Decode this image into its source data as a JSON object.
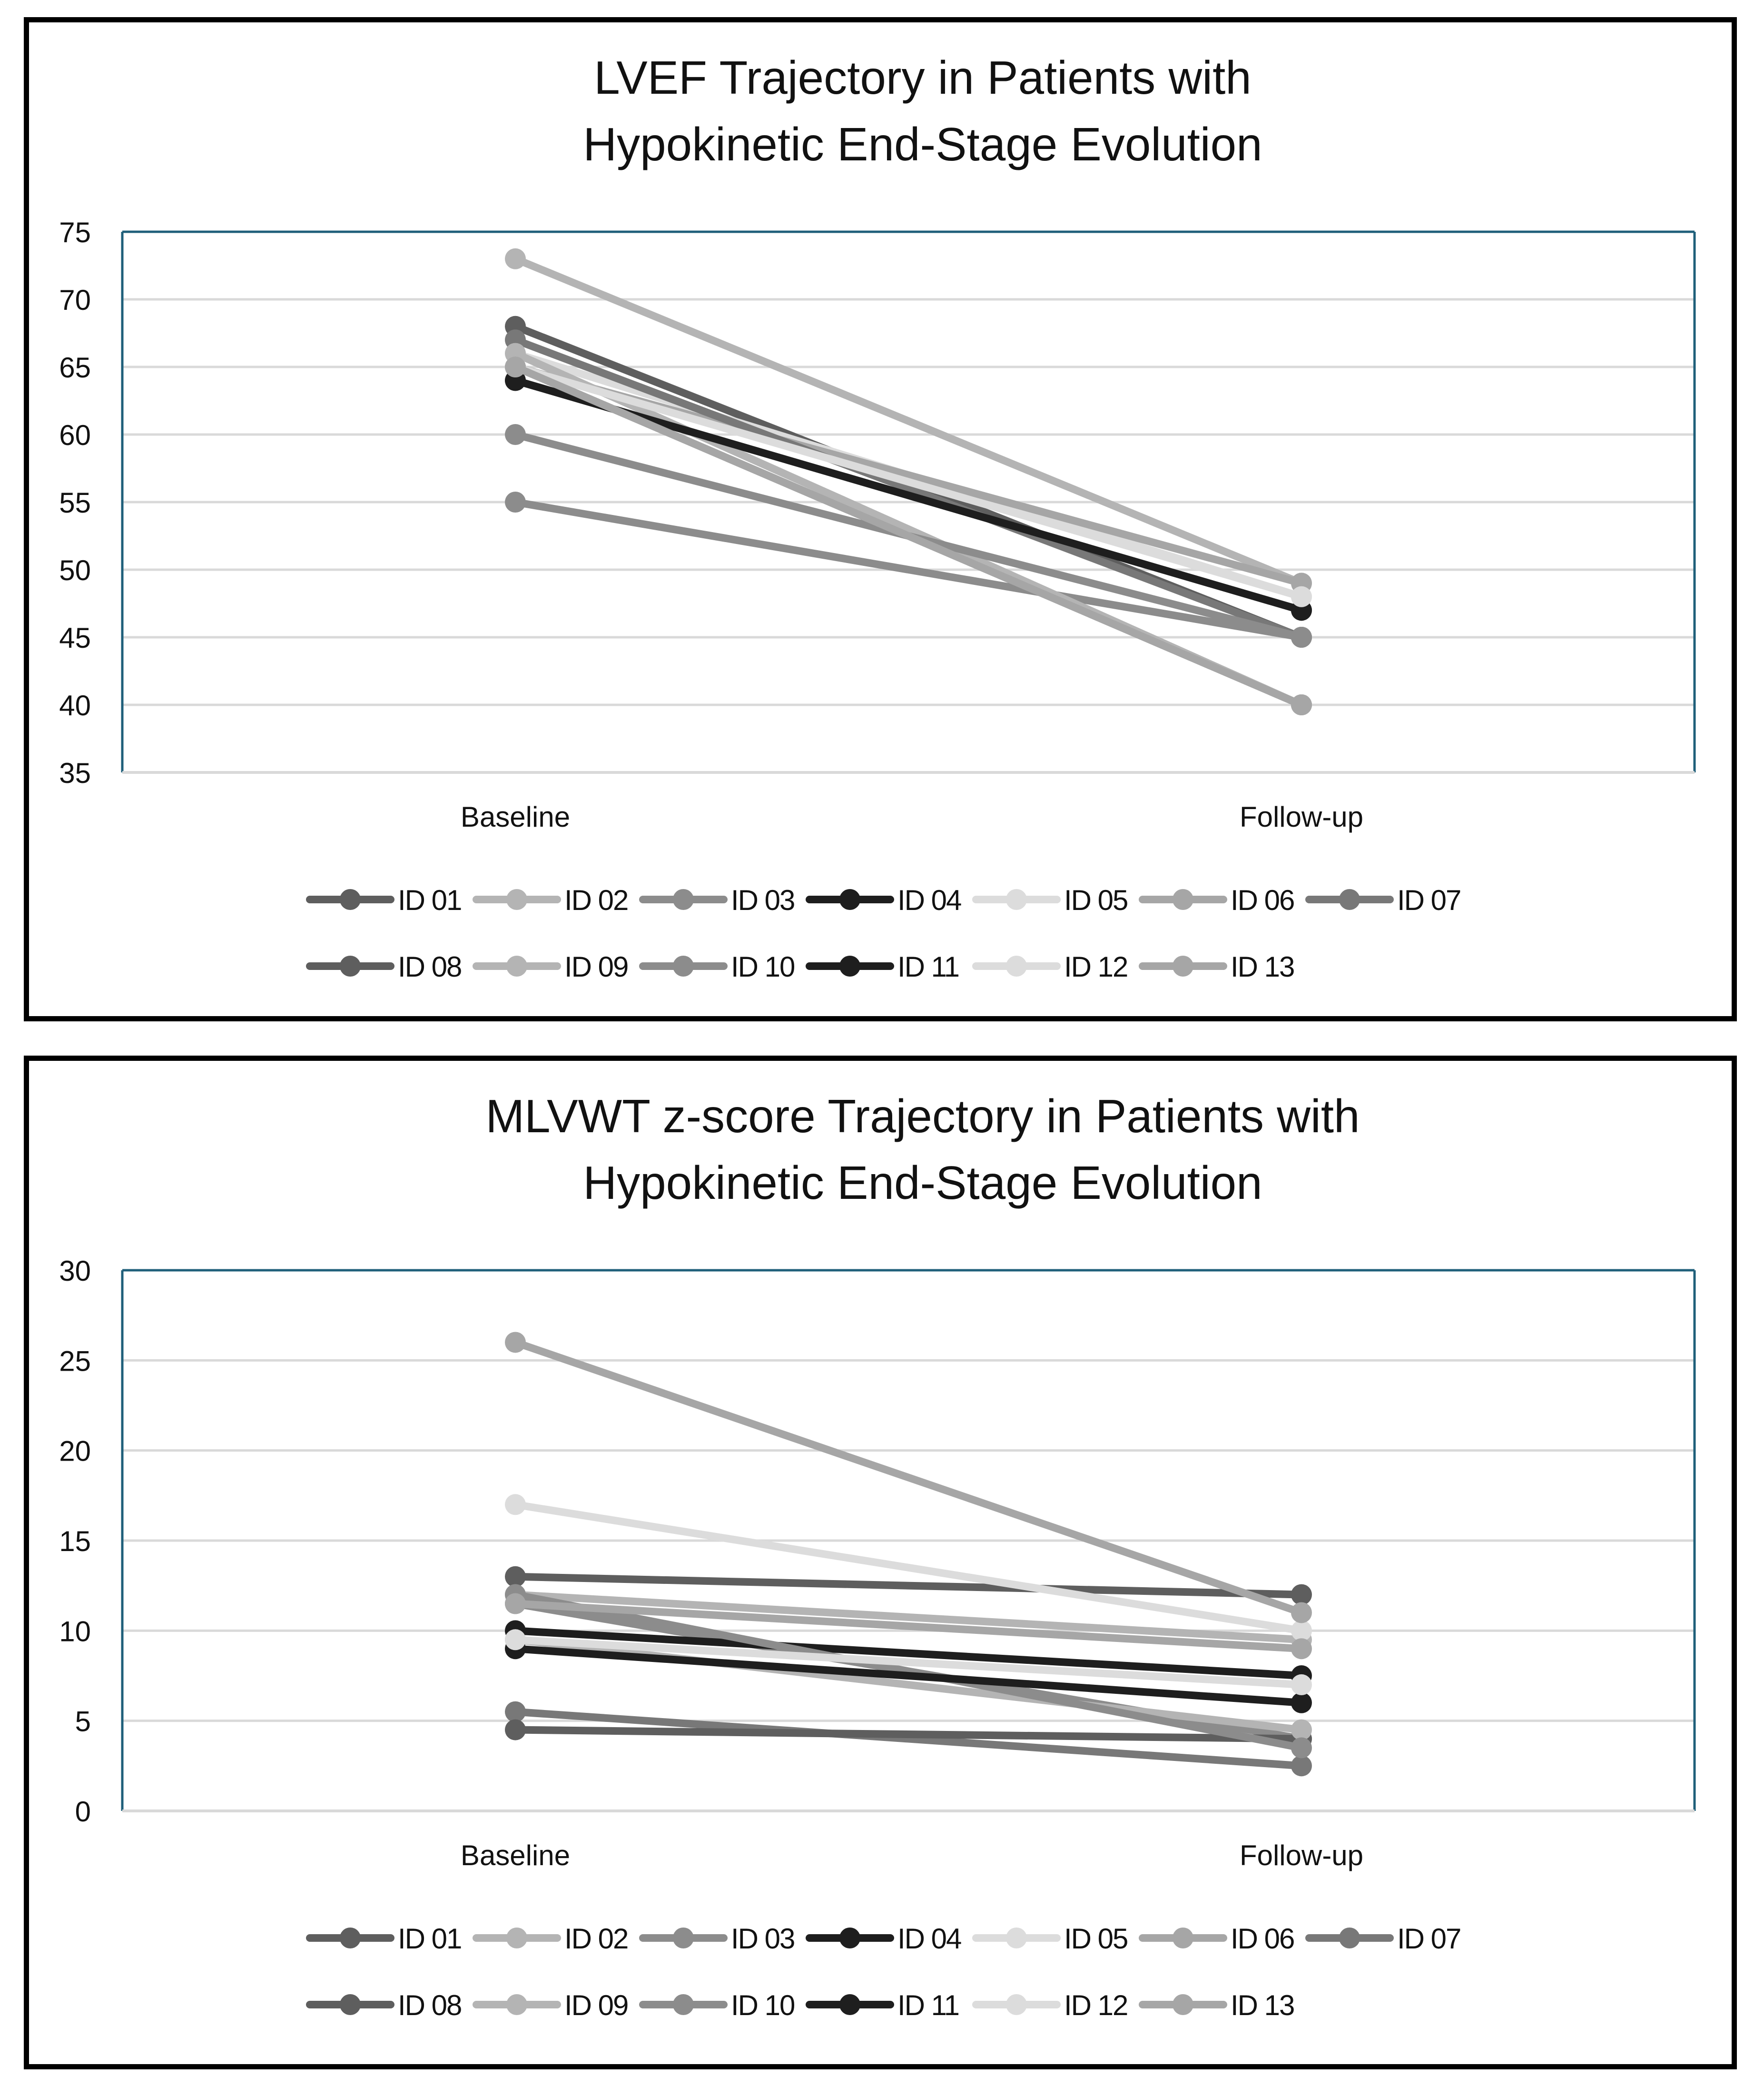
{
  "charts_meta": {
    "background": "#ffffff",
    "frame_color": "#000000",
    "plot_border_color": "#1f5f7a",
    "grid_color": "#d9d9d9"
  },
  "chart_data": [
    {
      "type": "line",
      "title": [
        "LVEF Trajectory in Patients with",
        "Hypokinetic End-Stage Evolution"
      ],
      "categories": [
        "Baseline",
        "Follow-up"
      ],
      "ylim": [
        35,
        75
      ],
      "yticks": [
        35,
        40,
        45,
        50,
        55,
        60,
        65,
        70,
        75
      ],
      "xlabel": "",
      "ylabel": "",
      "grid": true,
      "legend": "bottom",
      "series": [
        {
          "name": "ID 01",
          "color": "#5e5e5e",
          "values": [
            68,
            45
          ]
        },
        {
          "name": "ID 02",
          "color": "#b4b4b4",
          "values": [
            73,
            49
          ]
        },
        {
          "name": "ID 03",
          "color": "#8c8c8c",
          "values": [
            55,
            45
          ]
        },
        {
          "name": "ID 04",
          "color": "#1e1e1e",
          "values": [
            64,
            47
          ]
        },
        {
          "name": "ID 05",
          "color": "#dcdcdc",
          "values": [
            66,
            48
          ]
        },
        {
          "name": "ID 06",
          "color": "#a6a6a6",
          "values": [
            65,
            49
          ]
        },
        {
          "name": "ID 07",
          "color": "#787878",
          "values": [
            67,
            45
          ]
        },
        {
          "name": "ID 08",
          "color": "#5e5e5e",
          "values": [
            65,
            40
          ]
        },
        {
          "name": "ID 09",
          "color": "#b4b4b4",
          "values": [
            66,
            40
          ]
        },
        {
          "name": "ID 10",
          "color": "#8c8c8c",
          "values": [
            60,
            45
          ]
        },
        {
          "name": "ID 11",
          "color": "#1e1e1e",
          "values": [
            64,
            47
          ]
        },
        {
          "name": "ID 12",
          "color": "#dcdcdc",
          "values": [
            65,
            48
          ]
        },
        {
          "name": "ID 13",
          "color": "#a6a6a6",
          "values": [
            65,
            40
          ]
        }
      ]
    },
    {
      "type": "line",
      "title": [
        "MLVWT z-score Trajectory in Patients with",
        "Hypokinetic End-Stage Evolution"
      ],
      "categories": [
        "Baseline",
        "Follow-up"
      ],
      "ylim": [
        0,
        30
      ],
      "yticks": [
        0,
        5,
        10,
        15,
        20,
        25,
        30
      ],
      "xlabel": "",
      "ylabel": "",
      "grid": true,
      "legend": "bottom",
      "series": [
        {
          "name": "ID 01",
          "color": "#5e5e5e",
          "values": [
            13,
            12
          ]
        },
        {
          "name": "ID 02",
          "color": "#b4b4b4",
          "values": [
            12,
            9.5
          ]
        },
        {
          "name": "ID 03",
          "color": "#8c8c8c",
          "values": [
            11.5,
            4
          ]
        },
        {
          "name": "ID 04",
          "color": "#1e1e1e",
          "values": [
            10,
            7.5
          ]
        },
        {
          "name": "ID 05",
          "color": "#dcdcdc",
          "values": [
            17,
            10
          ]
        },
        {
          "name": "ID 06",
          "color": "#a6a6a6",
          "values": [
            26,
            11
          ]
        },
        {
          "name": "ID 07",
          "color": "#787878",
          "values": [
            5.5,
            2.5
          ]
        },
        {
          "name": "ID 08",
          "color": "#5e5e5e",
          "values": [
            4.5,
            4
          ]
        },
        {
          "name": "ID 09",
          "color": "#b4b4b4",
          "values": [
            9.5,
            4.5
          ]
        },
        {
          "name": "ID 10",
          "color": "#8c8c8c",
          "values": [
            12,
            3.5
          ]
        },
        {
          "name": "ID 11",
          "color": "#1e1e1e",
          "values": [
            9,
            6
          ]
        },
        {
          "name": "ID 12",
          "color": "#dcdcdc",
          "values": [
            9.5,
            7
          ]
        },
        {
          "name": "ID 13",
          "color": "#a6a6a6",
          "values": [
            11.5,
            9
          ]
        }
      ]
    }
  ]
}
